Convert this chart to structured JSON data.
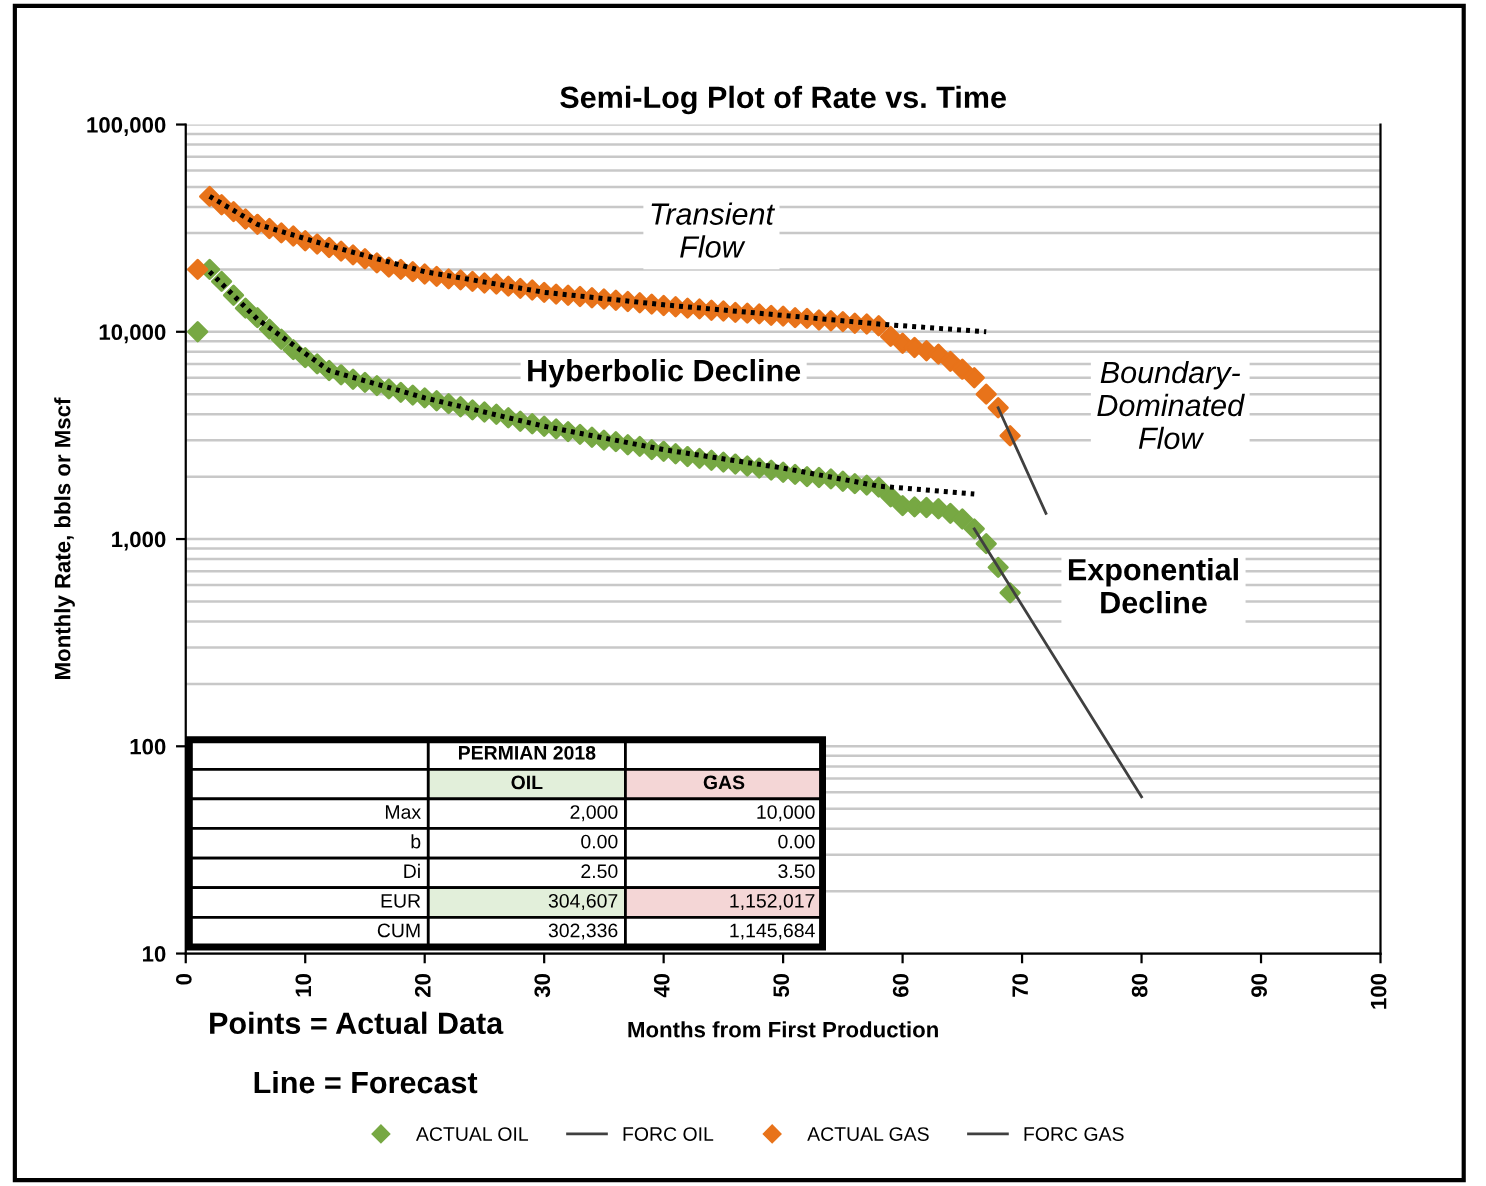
{
  "chart_data": {
    "type": "scatter",
    "title": "Semi-Log Plot of Rate vs. Time",
    "xlabel": "Months from First Production",
    "ylabel": "Monthly Rate, bbls or Mscf",
    "log": "y",
    "grid": "y",
    "legend": "bottom",
    "marker": "diamond",
    "xlim": [
      0,
      100
    ],
    "xticks": [
      0,
      10,
      20,
      30,
      40,
      50,
      60,
      70,
      80,
      90,
      100
    ],
    "ylim": [
      10,
      100000
    ],
    "yticks": [
      10,
      100,
      {
        "value": 1000,
        "label": "1,000"
      },
      {
        "value": 10000,
        "label": "10,000"
      },
      {
        "value": 100000,
        "label": "100,000"
      }
    ],
    "series": [
      {
        "name": "ACTUAL OIL",
        "color": "#77a843",
        "x": [
          1,
          2,
          3,
          4,
          5,
          6,
          7,
          8,
          9,
          10,
          11,
          12,
          13,
          14,
          15,
          16,
          17,
          18,
          19,
          20,
          21,
          22,
          23,
          24,
          25,
          26,
          27,
          28,
          29,
          30,
          31,
          32,
          33,
          34,
          35,
          36,
          37,
          38,
          39,
          40,
          41,
          42,
          43,
          44,
          45,
          46,
          47,
          48,
          49,
          50,
          51,
          52,
          53,
          54,
          55,
          56,
          57,
          58,
          59,
          60,
          61,
          62,
          63,
          64,
          65,
          66,
          67,
          68,
          69
        ],
        "values": [
          10000,
          20000,
          17500,
          15000,
          13000,
          11700,
          10300,
          9200,
          8200,
          7500,
          7000,
          6500,
          6200,
          5900,
          5700,
          5500,
          5300,
          5100,
          4950,
          4800,
          4650,
          4500,
          4350,
          4200,
          4100,
          4000,
          3850,
          3700,
          3600,
          3500,
          3400,
          3300,
          3200,
          3100,
          3000,
          2950,
          2850,
          2800,
          2700,
          2650,
          2580,
          2500,
          2450,
          2400,
          2350,
          2300,
          2250,
          2200,
          2150,
          2100,
          2050,
          2000,
          1980,
          1950,
          1900,
          1850,
          1820,
          1780,
          1600,
          1450,
          1430,
          1420,
          1400,
          1330,
          1250,
          1120,
          950,
          730,
          550
        ]
      },
      {
        "name": "FORC OIL",
        "type": "line",
        "marker": "none",
        "line_style": "solid",
        "color": "#404040",
        "x": [
          66,
          80
        ],
        "values": [
          1120,
          57
        ]
      },
      {
        "name": "ACTUAL GAS",
        "color": "#e8731a",
        "x": [
          1,
          2,
          3,
          4,
          5,
          6,
          7,
          8,
          9,
          10,
          11,
          12,
          13,
          14,
          15,
          16,
          17,
          18,
          19,
          20,
          21,
          22,
          23,
          24,
          25,
          26,
          27,
          28,
          29,
          30,
          31,
          32,
          33,
          34,
          35,
          36,
          37,
          38,
          39,
          40,
          41,
          42,
          43,
          44,
          45,
          46,
          47,
          48,
          49,
          50,
          51,
          52,
          53,
          54,
          55,
          56,
          57,
          58,
          59,
          60,
          61,
          62,
          63,
          64,
          65,
          66,
          67,
          68,
          69
        ],
        "values": [
          20000,
          45000,
          41000,
          38000,
          35000,
          33000,
          31500,
          30000,
          29000,
          27500,
          26500,
          25500,
          24500,
          23500,
          22500,
          21500,
          20500,
          20000,
          19500,
          19000,
          18500,
          18000,
          17800,
          17500,
          17200,
          17000,
          16600,
          16200,
          15900,
          15500,
          15200,
          15000,
          14800,
          14600,
          14400,
          14200,
          14000,
          13800,
          13600,
          13400,
          13200,
          13000,
          12900,
          12700,
          12600,
          12400,
          12300,
          12200,
          12000,
          11900,
          11700,
          11600,
          11400,
          11300,
          11200,
          11000,
          10900,
          10700,
          9500,
          8800,
          8400,
          8100,
          7800,
          7200,
          6600,
          6000,
          5000,
          4300,
          3150
        ]
      },
      {
        "name": "FORC GAS",
        "type": "line",
        "marker": "none",
        "line_style": "solid",
        "color": "#404040",
        "x": [
          68,
          72
        ],
        "values": [
          4300,
          1330
        ]
      },
      {
        "type": "line",
        "marker": "none",
        "line_style": "dotted",
        "color": "#000000",
        "x": [
          2,
          6,
          12,
          20,
          30,
          40,
          50,
          58,
          66
        ],
        "values": [
          19500,
          11500,
          6500,
          4800,
          3500,
          2700,
          2200,
          1800,
          1650
        ]
      },
      {
        "type": "line",
        "marker": "none",
        "line_style": "dotted",
        "color": "#000000",
        "x": [
          2,
          6,
          12,
          20,
          30,
          40,
          50,
          58,
          67
        ],
        "values": [
          45000,
          33000,
          26000,
          19500,
          15500,
          13500,
          12000,
          10900,
          10000
        ]
      }
    ],
    "annotations": [
      "Transient\nFlow",
      "Hyberbolic Decline",
      "Boundary-\nDominated\nFlow",
      "Exponential\nDecline",
      "Points = Actual Data",
      "Line = Forecast",
      "PERMIAN 2018",
      "OIL",
      "GAS",
      "Max",
      "2,000",
      "10,000",
      "b",
      "0.00",
      "0.00",
      "Di",
      "2.50",
      "3.50",
      "EUR",
      "304,607",
      "1,152,017",
      "CUM",
      "302,336",
      "1,145,684"
    ]
  }
}
